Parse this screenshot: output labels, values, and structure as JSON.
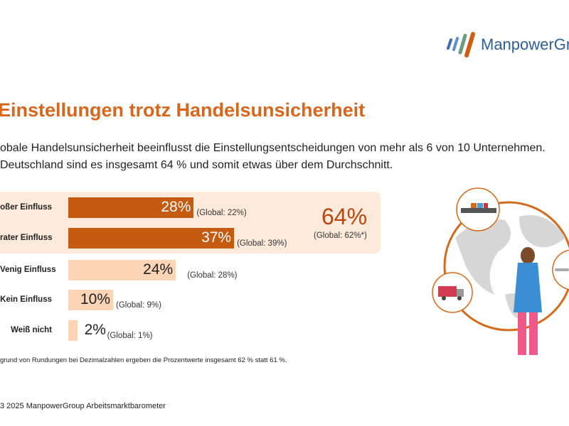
{
  "logo": {
    "text": "ManpowerGrou"
  },
  "title": "Einstellungen trotz Handelsunsicherheit",
  "subtitle": [
    "obale Handelsunsicherheit beeinflusst die Einstellungsentscheidungen von mehr als 6 von 10 Unternehmen.",
    "Deutschland sind es insgesamt 64 % und somit etwas über dem Durchschnitt."
  ],
  "chart_data": {
    "type": "bar",
    "orientation": "horizontal",
    "categories": [
      "oßer Einfluss",
      "rater Einfluss",
      "Venig Einfluss",
      "Kein Einfluss",
      "Weiß nicht"
    ],
    "values": [
      28,
      37,
      24,
      10,
      2
    ],
    "value_labels": [
      "28%",
      "37%",
      "24%",
      "10%",
      "2%"
    ],
    "global_labels": [
      "(Global:  22%)",
      "(Global:  39%)",
      "(Global:  28%)",
      "(Global:  9%)",
      "(Global:  1%)"
    ],
    "global_values": [
      22,
      39,
      28,
      9,
      1
    ],
    "colors": [
      "#c55a11",
      "#c55a11",
      "#fbd5b5",
      "#fbd5b5",
      "#fbd5b5"
    ],
    "highlight_total": "64%",
    "highlight_global": "(Global:  62%*)",
    "highlight_color": "#fdeadb",
    "total_color": "#b8470e"
  },
  "footnote": "grund von Rundungen bei Dezimalzahlen ergeben die Prozentwerte insgesamt 62 % statt 61 %.",
  "source": "3 2025 ManpowerGroup Arbeitsmarktbarometer",
  "accent_color": "#d8661c"
}
